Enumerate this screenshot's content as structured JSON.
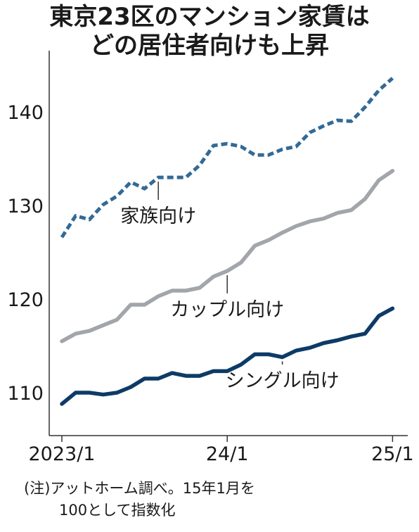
{
  "title_lines": [
    "東京23区のマンション家賃は",
    "どの居住者向けも上昇"
  ],
  "note_lines": [
    "(注)アットホーム調べ。15年1月を",
    "100として指数化"
  ],
  "chart_data": {
    "type": "line",
    "title": "東京23区のマンション家賃はどの居住者向けも上昇",
    "xlabel": "",
    "ylabel": "",
    "x_tick_labels": [
      {
        "label": "2023/1",
        "month": 0
      },
      {
        "label": "24/1",
        "month": 12
      },
      {
        "label": "25/1",
        "month": 24
      }
    ],
    "y_ticks": [
      110,
      120,
      130,
      140
    ],
    "ylim": [
      105,
      147
    ],
    "xlim": [
      -0.6,
      24.6
    ],
    "grid": false,
    "legend": "inline labels",
    "months": [
      0,
      1,
      2,
      3,
      4,
      5,
      6,
      7,
      8,
      9,
      10,
      11,
      12,
      13,
      14,
      15,
      16,
      17,
      18,
      19,
      20,
      21,
      22,
      23,
      24
    ],
    "series": [
      {
        "name": "家族向け",
        "color": "#336a96",
        "style": "dashed",
        "values": [
          126.6,
          128.9,
          128.5,
          130.1,
          131.0,
          132.5,
          131.8,
          133.0,
          133.0,
          133.0,
          134.3,
          136.4,
          136.6,
          136.3,
          135.4,
          135.4,
          136.0,
          136.3,
          137.8,
          138.5,
          139.1,
          139.0,
          140.5,
          142.3,
          143.6
        ],
        "label_month": 7,
        "label_value": 128.2
      },
      {
        "name": "カップル向け",
        "color": "#a2a6ab",
        "style": "solid",
        "values": [
          115.5,
          116.3,
          116.6,
          117.2,
          117.8,
          119.4,
          119.4,
          120.3,
          120.9,
          120.9,
          121.2,
          122.4,
          123.0,
          123.9,
          125.7,
          126.3,
          127.1,
          127.8,
          128.3,
          128.6,
          129.2,
          129.5,
          130.7,
          132.7,
          133.7
        ],
        "label_month": 12,
        "label_value": 118.2
      },
      {
        "name": "シングル向け",
        "color": "#0d3b66",
        "style": "solid",
        "values": [
          108.8,
          110.0,
          110.0,
          109.8,
          110.0,
          110.6,
          111.5,
          111.5,
          112.1,
          111.8,
          111.8,
          112.3,
          112.3,
          113.0,
          114.1,
          114.1,
          113.8,
          114.5,
          114.8,
          115.3,
          115.6,
          116.0,
          116.3,
          118.2,
          119.0
        ],
        "label_month": 16,
        "label_value": 110.6
      }
    ]
  }
}
